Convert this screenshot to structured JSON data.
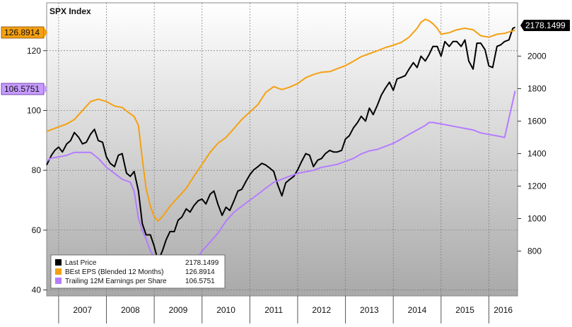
{
  "chart_data": {
    "type": "line",
    "title": "SPX Index",
    "x_axis": {
      "year_labels": [
        "2007",
        "2008",
        "2009",
        "2010",
        "2011",
        "2012",
        "2013",
        "2014",
        "2015",
        "2016"
      ],
      "range": [
        2006.75,
        2016.6
      ]
    },
    "left_axis": {
      "range": [
        38,
        136
      ],
      "ticks": [
        40,
        60,
        80,
        100,
        120
      ]
    },
    "right_axis": {
      "range": [
        524,
        2328
      ],
      "ticks": [
        800,
        1000,
        1200,
        1400,
        1600,
        1800,
        2000
      ]
    },
    "grid": true,
    "legend_position": "bottom-left",
    "series": [
      {
        "name": "Last Price",
        "last_value": "2178.1499",
        "axis": "right",
        "color": "#000000",
        "x": [
          2006.75,
          2006.85,
          2006.92,
          2007.0,
          2007.08,
          2007.17,
          2007.25,
          2007.33,
          2007.42,
          2007.5,
          2007.58,
          2007.67,
          2007.75,
          2007.83,
          2007.92,
          2008.0,
          2008.08,
          2008.17,
          2008.25,
          2008.33,
          2008.42,
          2008.5,
          2008.58,
          2008.67,
          2008.75,
          2008.83,
          2008.92,
          2009.0,
          2009.08,
          2009.17,
          2009.25,
          2009.33,
          2009.42,
          2009.5,
          2009.58,
          2009.67,
          2009.75,
          2009.83,
          2009.92,
          2010.0,
          2010.08,
          2010.17,
          2010.25,
          2010.33,
          2010.42,
          2010.5,
          2010.58,
          2010.67,
          2010.75,
          2010.83,
          2010.92,
          2011.0,
          2011.08,
          2011.17,
          2011.25,
          2011.33,
          2011.42,
          2011.5,
          2011.58,
          2011.67,
          2011.75,
          2011.83,
          2011.92,
          2012.0,
          2012.08,
          2012.17,
          2012.25,
          2012.33,
          2012.42,
          2012.5,
          2012.58,
          2012.67,
          2012.75,
          2012.83,
          2012.92,
          2013.0,
          2013.08,
          2013.17,
          2013.25,
          2013.33,
          2013.42,
          2013.5,
          2013.58,
          2013.67,
          2013.75,
          2013.83,
          2013.92,
          2014.0,
          2014.08,
          2014.17,
          2014.25,
          2014.33,
          2014.42,
          2014.5,
          2014.58,
          2014.67,
          2014.75,
          2014.83,
          2014.92,
          2015.0,
          2015.08,
          2015.17,
          2015.25,
          2015.33,
          2015.42,
          2015.5,
          2015.58,
          2015.67,
          2015.75,
          2015.83,
          2015.92,
          2016.0,
          2016.08,
          2016.17,
          2016.25,
          2016.33,
          2016.42,
          2016.5,
          2016.55
        ],
        "y": [
          1330,
          1390,
          1420,
          1440,
          1410,
          1460,
          1480,
          1530,
          1500,
          1460,
          1470,
          1520,
          1550,
          1480,
          1470,
          1380,
          1340,
          1320,
          1390,
          1400,
          1280,
          1260,
          1290,
          1170,
          970,
          900,
          900,
          830,
          740,
          800,
          870,
          920,
          920,
          990,
          1010,
          1060,
          1040,
          1080,
          1110,
          1120,
          1090,
          1150,
          1170,
          1090,
          1020,
          1070,
          1050,
          1110,
          1170,
          1180,
          1230,
          1270,
          1300,
          1320,
          1340,
          1330,
          1310,
          1290,
          1210,
          1140,
          1220,
          1240,
          1260,
          1300,
          1350,
          1400,
          1390,
          1320,
          1360,
          1370,
          1400,
          1420,
          1410,
          1410,
          1420,
          1490,
          1510,
          1560,
          1590,
          1630,
          1600,
          1680,
          1640,
          1700,
          1760,
          1800,
          1840,
          1790,
          1860,
          1870,
          1880,
          1920,
          1960,
          1930,
          2000,
          1970,
          2010,
          2060,
          2060,
          2000,
          2090,
          2060,
          2090,
          2090,
          2060,
          2100,
          1970,
          1920,
          2080,
          2080,
          2040,
          1940,
          1930,
          2060,
          2070,
          2090,
          2100,
          2170,
          2178
        ]
      },
      {
        "name": "BEst EPS (Blended 12 Months)",
        "last_value": "126.8914",
        "axis": "left",
        "color": "#f5a011",
        "x": [
          2006.75,
          2007.0,
          2007.17,
          2007.33,
          2007.5,
          2007.67,
          2007.83,
          2008.0,
          2008.17,
          2008.33,
          2008.45,
          2008.58,
          2008.67,
          2008.75,
          2008.83,
          2008.92,
          2009.0,
          2009.08,
          2009.17,
          2009.33,
          2009.5,
          2009.67,
          2009.83,
          2010.0,
          2010.17,
          2010.33,
          2010.5,
          2010.67,
          2010.83,
          2011.0,
          2011.17,
          2011.33,
          2011.5,
          2011.58,
          2011.67,
          2011.83,
          2012.0,
          2012.17,
          2012.33,
          2012.5,
          2012.67,
          2012.83,
          2013.0,
          2013.17,
          2013.33,
          2013.5,
          2013.67,
          2013.83,
          2014.0,
          2014.17,
          2014.33,
          2014.5,
          2014.58,
          2014.67,
          2014.75,
          2014.83,
          2014.92,
          2015.0,
          2015.17,
          2015.33,
          2015.5,
          2015.67,
          2015.75,
          2015.83,
          2016.0,
          2016.17,
          2016.33,
          2016.55
        ],
        "y": [
          93,
          94.5,
          95.5,
          97,
          100,
          103,
          103.8,
          103,
          101.5,
          101,
          99.5,
          98,
          95,
          84,
          74,
          68,
          64.5,
          63,
          64.5,
          68,
          71,
          74,
          78,
          82,
          86,
          89,
          91,
          94,
          97,
          99.5,
          102,
          106,
          108,
          107.5,
          107,
          107.8,
          109,
          111,
          112,
          112.8,
          113,
          114,
          115,
          116.5,
          118,
          119,
          120,
          121,
          121.8,
          122.8,
          124.5,
          127.5,
          129.5,
          130.5,
          130,
          129,
          127.5,
          125.5,
          126,
          127,
          127.5,
          127,
          126,
          125,
          124.5,
          125.5,
          125.8,
          126.89
        ]
      },
      {
        "name": "Trailing 12M Earnings per Share",
        "last_value": "106.5751",
        "axis": "left",
        "color": "#b57cff",
        "x": [
          2006.75,
          2006.83,
          2007.0,
          2007.17,
          2007.33,
          2007.5,
          2007.67,
          2007.75,
          2007.83,
          2008.0,
          2008.17,
          2008.33,
          2008.5,
          2008.58,
          2008.67,
          2008.75,
          2008.83,
          2008.92,
          2009.0,
          2009.08,
          2009.17,
          2009.25,
          2009.33,
          2009.42,
          2009.5,
          2009.58,
          2009.67,
          2009.75,
          2009.83,
          2009.92,
          2010.0,
          2010.17,
          2010.33,
          2010.5,
          2010.67,
          2010.83,
          2011.0,
          2011.17,
          2011.33,
          2011.5,
          2011.67,
          2011.83,
          2012.0,
          2012.17,
          2012.33,
          2012.5,
          2012.67,
          2012.83,
          2013.0,
          2013.17,
          2013.33,
          2013.5,
          2013.67,
          2013.83,
          2014.0,
          2014.17,
          2014.33,
          2014.5,
          2014.67,
          2014.75,
          2014.83,
          2015.0,
          2015.17,
          2015.33,
          2015.5,
          2015.67,
          2015.83,
          2016.0,
          2016.17,
          2016.33,
          2016.55
        ],
        "y": [
          83,
          84,
          84.5,
          85,
          86,
          86,
          86,
          85,
          84,
          81,
          79,
          77,
          76,
          73,
          64,
          60,
          57,
          53,
          51,
          47,
          46,
          45,
          43,
          42,
          41,
          41,
          41,
          41,
          49,
          51,
          53,
          56,
          59,
          63,
          66,
          68,
          70,
          72,
          74,
          76,
          77,
          78,
          79,
          79.5,
          80,
          81,
          81.5,
          82,
          83,
          84,
          85.5,
          86.5,
          87,
          88,
          89,
          90.5,
          92,
          93.5,
          95,
          96,
          96,
          95.5,
          95,
          94.5,
          94,
          93.5,
          92.5,
          92,
          91.5,
          91,
          106.5751
        ]
      }
    ]
  }
}
